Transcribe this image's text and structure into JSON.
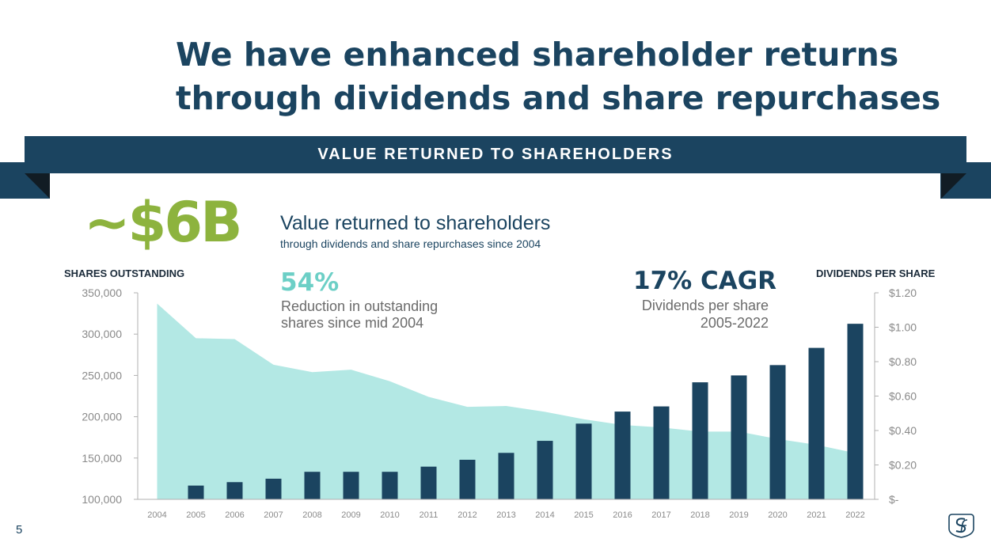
{
  "slide": {
    "title_line1": "We have enhanced shareholder returns",
    "title_line2": "through dividends and share repurchases",
    "banner": "VALUE RETURNED TO SHAREHOLDERS",
    "big_value": "~$6B",
    "value_title": "Value returned to shareholders",
    "value_subtitle": "through dividends and share repurchases since 2004",
    "stat1_value": "54%",
    "stat1_line1": "Reduction in outstanding",
    "stat1_line2": "shares since mid 2004",
    "stat2_value": "17% CAGR",
    "stat2_line1": "Dividends per share",
    "stat2_line2": "2005-2022",
    "page_number": "5",
    "logo_icon": "sf-monogram-icon",
    "colors": {
      "navy": "#1b4460",
      "area": "#b3e8e4",
      "green": "#8db33e",
      "teal": "#6ccfc6"
    }
  },
  "chart_data": {
    "type": "bar",
    "categories": [
      "2004",
      "2005",
      "2006",
      "2007",
      "2008",
      "2009",
      "2010",
      "2011",
      "2012",
      "2013",
      "2014",
      "2015",
      "2016",
      "2017",
      "2018",
      "2019",
      "2020",
      "2021",
      "2022"
    ],
    "left_axis": {
      "title": "SHARES OUTSTANDING",
      "ylim": [
        100000,
        350000
      ],
      "ticks": [
        "350,000",
        "300,000",
        "250,000",
        "200,000",
        "150,000",
        "100,000"
      ],
      "tick_values": [
        350000,
        300000,
        250000,
        200000,
        150000,
        100000
      ]
    },
    "right_axis": {
      "title": "DIVIDENDS PER SHARE",
      "ylim": [
        0,
        1.2
      ],
      "ticks": [
        "$1.20",
        "$1.00",
        "$0.80",
        "$0.60",
        "$0.40",
        "$0.20",
        "$-"
      ],
      "tick_values": [
        1.2,
        1.0,
        0.8,
        0.6,
        0.4,
        0.2,
        0
      ]
    },
    "series": [
      {
        "type": "area",
        "axis": "left",
        "values": [
          337000,
          295000,
          294000,
          263000,
          254000,
          257000,
          243000,
          224000,
          212000,
          213000,
          206000,
          197000,
          190000,
          187000,
          182000,
          182000,
          173000,
          166000,
          156000
        ]
      },
      {
        "type": "bar",
        "axis": "right",
        "values": [
          null,
          0.08,
          0.1,
          0.12,
          0.16,
          0.16,
          0.16,
          0.19,
          0.23,
          0.27,
          0.34,
          0.44,
          0.51,
          0.54,
          0.68,
          0.72,
          0.78,
          0.88,
          1.02
        ]
      }
    ],
    "grid": false
  }
}
